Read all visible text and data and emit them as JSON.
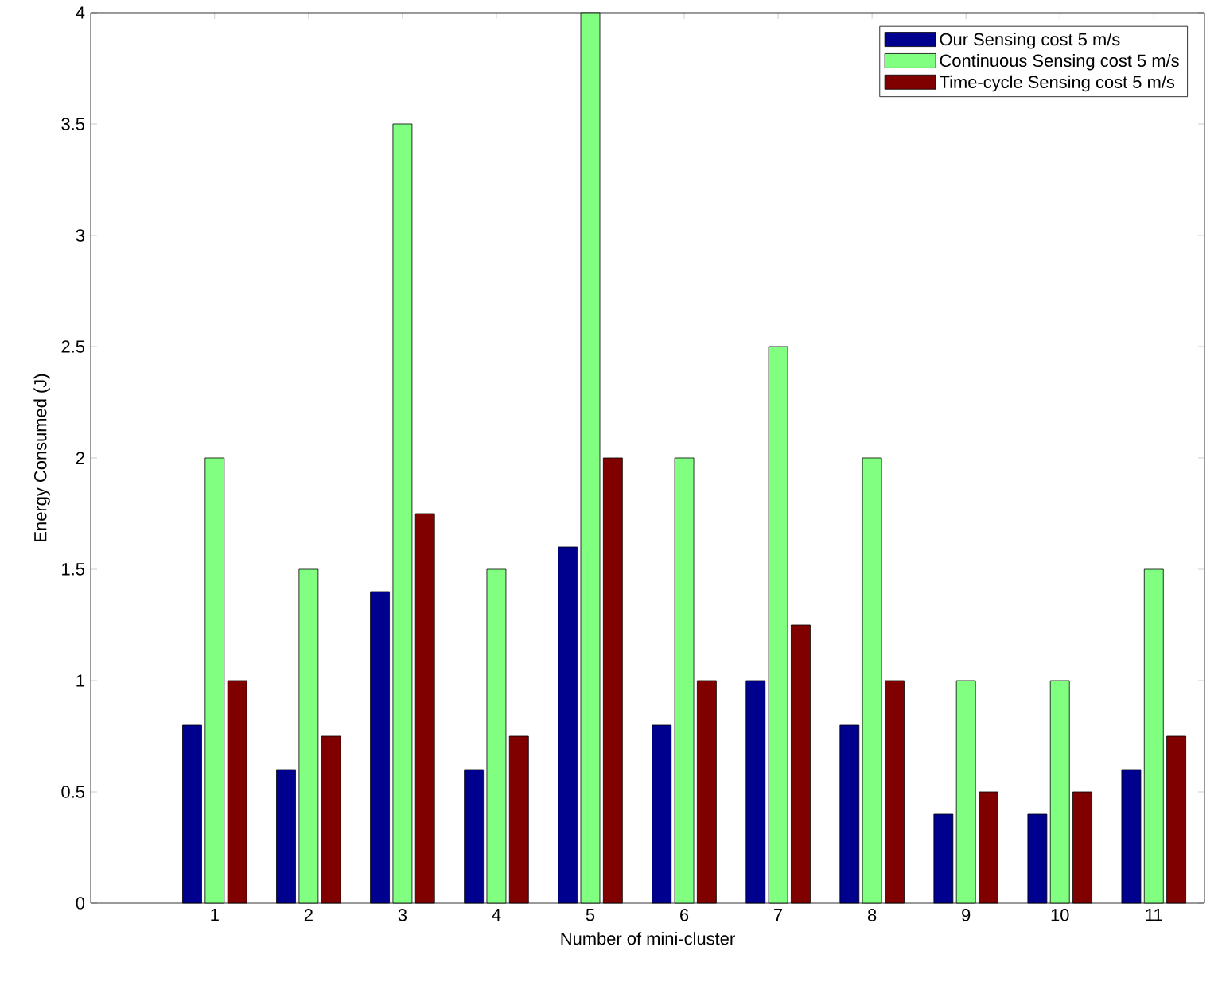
{
  "chart_data": {
    "type": "bar",
    "xlabel": "Number of mini-cluster",
    "ylabel": "Energy Consumed (J)",
    "categories": [
      "1",
      "2",
      "3",
      "4",
      "5",
      "6",
      "7",
      "8",
      "9",
      "10",
      "11"
    ],
    "series": [
      {
        "name": "Our Sensing cost 5 m/s",
        "color": "#00008f",
        "values": [
          0.8,
          0.6,
          1.4,
          0.6,
          1.6,
          0.8,
          1.0,
          0.8,
          0.4,
          0.4,
          0.6
        ]
      },
      {
        "name": "Continuous Sensing cost 5 m/s",
        "color": "#80ff80",
        "values": [
          2,
          1.5,
          3.5,
          1.5,
          4,
          2,
          2.5,
          2,
          1,
          1,
          1.5
        ]
      },
      {
        "name": "Time-cycle Sensing cost 5 m/s",
        "color": "#800000",
        "values": [
          1,
          0.75,
          1.75,
          0.75,
          2,
          1,
          1.25,
          1,
          0.5,
          0.5,
          0.75
        ]
      }
    ],
    "ylim": [
      0,
      4
    ],
    "yticks": [
      0,
      0.5,
      1,
      1.5,
      2,
      2.5,
      3,
      3.5,
      4
    ],
    "grid": false,
    "legend": "top right"
  }
}
